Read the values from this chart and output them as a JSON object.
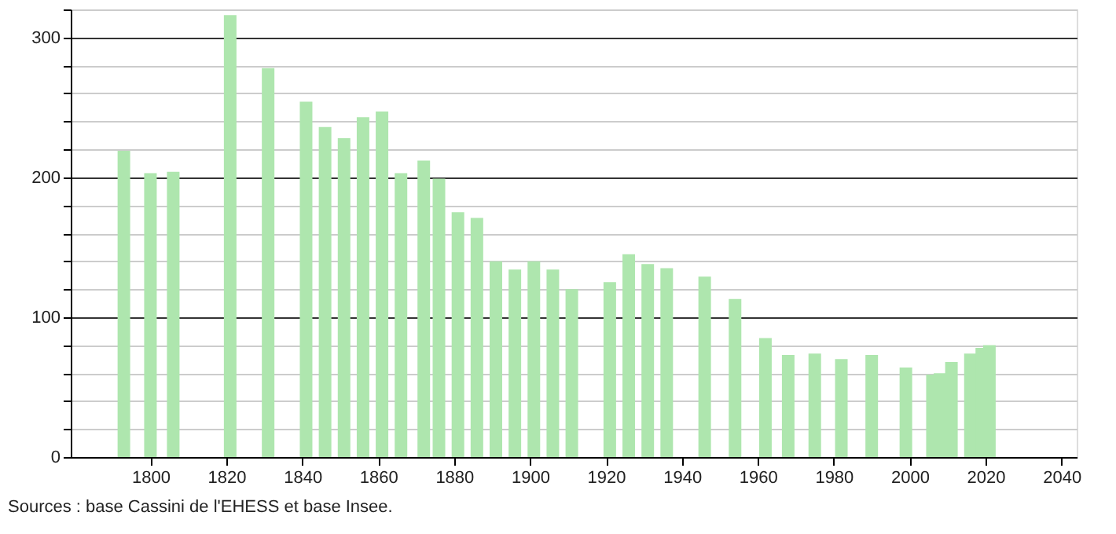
{
  "chart_data": {
    "type": "bar",
    "x": [
      1793,
      1800,
      1806,
      1821,
      1831,
      1841,
      1846,
      1851,
      1856,
      1861,
      1866,
      1872,
      1876,
      1881,
      1886,
      1891,
      1896,
      1901,
      1906,
      1911,
      1921,
      1926,
      1931,
      1936,
      1946,
      1954,
      1962,
      1968,
      1975,
      1982,
      1990,
      1999,
      2006,
      2008,
      2011,
      2016,
      2019,
      2021
    ],
    "series": [
      {
        "color": "#aee6ae",
        "values": [
          219,
          203,
          204,
          316,
          278,
          254,
          236,
          228,
          243,
          247,
          203,
          212,
          199,
          175,
          171,
          140,
          134,
          140,
          134,
          120,
          125,
          145,
          138,
          135,
          129,
          113,
          85,
          73,
          74,
          70,
          73,
          64,
          59,
          60,
          68,
          74,
          78,
          80
        ]
      }
    ],
    "xlim": [
      1779,
      2044
    ],
    "xticks": [
      1800,
      1820,
      1840,
      1860,
      1880,
      1900,
      1920,
      1940,
      1960,
      1980,
      2000,
      2020,
      2040
    ],
    "ylim": [
      0,
      320
    ],
    "yticks": [
      0,
      {
        "value": 20,
        "label": null
      },
      {
        "value": 40,
        "label": null
      },
      {
        "value": 60,
        "label": null
      },
      {
        "value": 80,
        "label": null
      },
      100,
      {
        "value": 120,
        "label": null
      },
      {
        "value": 140,
        "label": null
      },
      {
        "value": 160,
        "label": null
      },
      {
        "value": 180,
        "label": null
      },
      200,
      {
        "value": 220,
        "label": null
      },
      {
        "value": 240,
        "label": null
      },
      {
        "value": 260,
        "label": null
      },
      {
        "value": 280,
        "label": null
      },
      300,
      {
        "value": 320,
        "label": null
      }
    ],
    "grid": "y",
    "annotations": [
      "Sources : base Cassini de l'EHESS et base Insee."
    ]
  }
}
